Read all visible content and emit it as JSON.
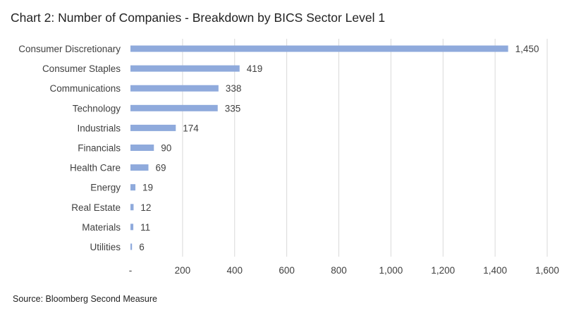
{
  "chart_data": {
    "type": "bar",
    "orientation": "horizontal",
    "title": "Chart 2: Number of Companies - Breakdown by BICS Sector Level 1",
    "source": "Source: Bloomberg Second Measure",
    "categories": [
      "Consumer Discretionary",
      "Consumer Staples",
      "Communications",
      "Technology",
      "Industrials",
      "Financials",
      "Health Care",
      "Energy",
      "Real Estate",
      "Materials",
      "Utilities"
    ],
    "values": [
      1450,
      419,
      338,
      335,
      174,
      90,
      69,
      19,
      12,
      11,
      6
    ],
    "value_labels": [
      "1,450",
      "419",
      "338",
      "335",
      "174",
      "90",
      "69",
      "19",
      "12",
      "11",
      "6"
    ],
    "xlim": [
      0,
      1600
    ],
    "xticks": [
      0,
      200,
      400,
      600,
      800,
      1000,
      1200,
      1400,
      1600
    ],
    "xtick_labels": [
      "-",
      "200",
      "400",
      "600",
      "800",
      "1,000",
      "1,200",
      "1,400",
      "1,600"
    ],
    "xlabel": "",
    "ylabel": "",
    "grid": "vertical",
    "bar_color": "#8faadc",
    "grid_color": "#d9d9d9"
  }
}
